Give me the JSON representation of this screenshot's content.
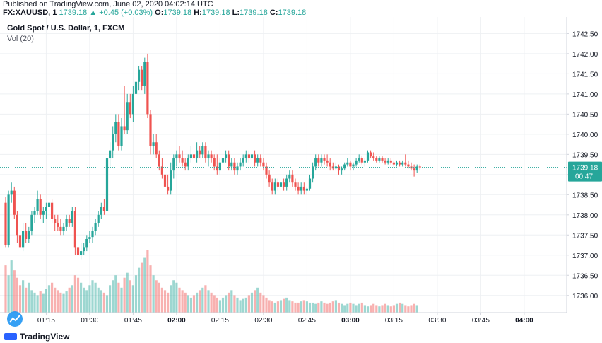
{
  "header": {
    "published": "Published on TradingView.com, June 02, 2020 04:02:14 UTC",
    "symbol": "FX:XAUUSD, 1",
    "price": "1739.18",
    "change": "+0.45 (+0.03%)",
    "open_label": "O:",
    "open": "1739.18",
    "high_label": "H:",
    "high": "1739.18",
    "low_label": "L:",
    "low": "1739.18",
    "close_label": "C:",
    "close": "1739.18"
  },
  "legend": {
    "title": "Gold Spot / U.S. Dollar, 1, FXCM",
    "volume": "Vol (20)"
  },
  "footer": {
    "brand": "TradingView"
  },
  "colors": {
    "up": "#26a69a",
    "down": "#ef5350",
    "price_label": "#26a69a",
    "grid": "#eef0f3"
  },
  "chart_data": {
    "type": "candlestick",
    "title": "Gold Spot / U.S. Dollar, 1, FXCM",
    "ylim": [
      1735.75,
      1742.7
    ],
    "y_ticks": [
      "1742.50",
      "1742.00",
      "1741.50",
      "1741.00",
      "1740.50",
      "1740.00",
      "1739.50",
      "1739.00",
      "1738.50",
      "1738.00",
      "1737.50",
      "1737.00",
      "1736.50",
      "1736.00"
    ],
    "x_ticks": [
      {
        "label": "01:15",
        "minute": 14
      },
      {
        "label": "01:30",
        "minute": 29
      },
      {
        "label": "01:45",
        "minute": 44
      },
      {
        "label": "02:00",
        "minute": 59,
        "bold": true
      },
      {
        "label": "02:15",
        "minute": 74
      },
      {
        "label": "02:30",
        "minute": 89
      },
      {
        "label": "02:45",
        "minute": 104
      },
      {
        "label": "03:00",
        "minute": 119,
        "bold": true
      },
      {
        "label": "03:15",
        "minute": 134
      },
      {
        "label": "03:30",
        "minute": 149
      },
      {
        "label": "03:45",
        "minute": 164
      },
      {
        "label": "04:00",
        "minute": 179,
        "bold": true
      }
    ],
    "last_price": "1739.18",
    "last_price_value": 1739.18,
    "countdown": "00:47",
    "volume_label": "Vol (20)",
    "candles": [
      [
        1738.3,
        1738.45,
        1737.2,
        1737.25
      ],
      [
        1737.25,
        1738.6,
        1737.2,
        1738.5
      ],
      [
        1738.5,
        1738.8,
        1738.3,
        1738.6
      ],
      [
        1738.6,
        1738.7,
        1737.9,
        1738.0
      ],
      [
        1738.0,
        1738.1,
        1737.3,
        1737.5
      ],
      [
        1737.5,
        1737.7,
        1737.1,
        1737.2
      ],
      [
        1737.2,
        1737.8,
        1737.1,
        1737.6
      ],
      [
        1737.6,
        1737.8,
        1737.3,
        1737.4
      ],
      [
        1737.4,
        1737.7,
        1737.3,
        1737.6
      ],
      [
        1737.6,
        1738.1,
        1737.5,
        1738.0
      ],
      [
        1738.0,
        1738.2,
        1737.8,
        1738.1
      ],
      [
        1738.1,
        1738.6,
        1738.0,
        1738.4
      ],
      [
        1738.4,
        1738.5,
        1737.9,
        1738.0
      ],
      [
        1738.0,
        1738.2,
        1737.8,
        1738.1
      ],
      [
        1738.1,
        1738.3,
        1737.9,
        1738.2
      ],
      [
        1738.2,
        1738.5,
        1738.0,
        1738.3
      ],
      [
        1738.3,
        1738.4,
        1737.8,
        1737.9
      ],
      [
        1737.9,
        1738.0,
        1737.6,
        1737.8
      ],
      [
        1737.8,
        1738.0,
        1737.6,
        1737.7
      ],
      [
        1737.7,
        1737.9,
        1737.5,
        1737.6
      ],
      [
        1737.6,
        1737.8,
        1737.5,
        1737.7
      ],
      [
        1737.7,
        1738.0,
        1737.6,
        1737.9
      ],
      [
        1737.9,
        1738.0,
        1737.7,
        1737.8
      ],
      [
        1737.8,
        1738.2,
        1737.7,
        1738.1
      ],
      [
        1738.1,
        1738.2,
        1737.0,
        1737.2
      ],
      [
        1737.2,
        1737.4,
        1736.9,
        1737.0
      ],
      [
        1737.0,
        1737.3,
        1736.9,
        1737.1
      ],
      [
        1737.1,
        1737.3,
        1737.0,
        1737.2
      ],
      [
        1737.2,
        1737.5,
        1737.1,
        1737.4
      ],
      [
        1737.4,
        1737.6,
        1737.3,
        1737.45
      ],
      [
        1737.45,
        1737.7,
        1737.3,
        1737.6
      ],
      [
        1737.6,
        1737.9,
        1737.5,
        1737.8
      ],
      [
        1737.8,
        1738.1,
        1737.7,
        1738.0
      ],
      [
        1738.0,
        1738.3,
        1737.9,
        1738.2
      ],
      [
        1738.2,
        1738.4,
        1738.0,
        1738.1
      ],
      [
        1738.1,
        1739.5,
        1738.0,
        1739.4
      ],
      [
        1739.4,
        1739.8,
        1739.2,
        1739.6
      ],
      [
        1739.6,
        1740.2,
        1739.4,
        1740.0
      ],
      [
        1740.0,
        1740.5,
        1739.8,
        1740.3
      ],
      [
        1740.3,
        1740.5,
        1739.6,
        1739.7
      ],
      [
        1739.7,
        1740.4,
        1739.6,
        1740.2
      ],
      [
        1740.2,
        1741.2,
        1740.0,
        1740.1
      ],
      [
        1740.1,
        1741.0,
        1740.0,
        1740.8
      ],
      [
        1740.8,
        1741.0,
        1740.4,
        1740.5
      ],
      [
        1740.5,
        1741.2,
        1740.3,
        1741.0
      ],
      [
        1741.0,
        1741.4,
        1740.8,
        1741.3
      ],
      [
        1741.3,
        1741.7,
        1741.1,
        1741.6
      ],
      [
        1741.6,
        1741.7,
        1741.1,
        1741.2
      ],
      [
        1741.2,
        1741.9,
        1741.0,
        1741.8
      ],
      [
        1741.8,
        1742.0,
        1740.4,
        1740.5
      ],
      [
        1740.5,
        1740.6,
        1739.5,
        1739.7
      ],
      [
        1739.7,
        1740.0,
        1739.5,
        1739.8
      ],
      [
        1739.8,
        1740.0,
        1739.4,
        1739.5
      ],
      [
        1739.5,
        1739.6,
        1739.1,
        1739.2
      ],
      [
        1739.2,
        1739.4,
        1738.9,
        1739.0
      ],
      [
        1739.0,
        1739.2,
        1738.6,
        1738.7
      ],
      [
        1738.7,
        1739.0,
        1738.5,
        1738.6
      ],
      [
        1738.6,
        1739.3,
        1738.5,
        1739.1
      ],
      [
        1739.1,
        1739.5,
        1738.9,
        1739.4
      ],
      [
        1739.4,
        1739.6,
        1739.2,
        1739.5
      ],
      [
        1739.5,
        1739.7,
        1739.3,
        1739.4
      ],
      [
        1739.4,
        1739.6,
        1739.2,
        1739.3
      ],
      [
        1739.3,
        1739.4,
        1739.1,
        1739.2
      ],
      [
        1739.2,
        1739.5,
        1739.1,
        1739.4
      ],
      [
        1739.4,
        1739.7,
        1739.3,
        1739.5
      ],
      [
        1739.5,
        1739.6,
        1739.3,
        1739.4
      ],
      [
        1739.4,
        1739.8,
        1739.3,
        1739.6
      ],
      [
        1739.6,
        1739.7,
        1739.4,
        1739.5
      ],
      [
        1739.5,
        1739.8,
        1739.4,
        1739.7
      ],
      [
        1739.7,
        1739.8,
        1739.3,
        1739.4
      ],
      [
        1739.4,
        1739.6,
        1739.2,
        1739.5
      ],
      [
        1739.5,
        1739.6,
        1739.3,
        1739.4
      ],
      [
        1739.4,
        1739.5,
        1739.1,
        1739.2
      ],
      [
        1739.2,
        1739.5,
        1739.0,
        1739.1
      ],
      [
        1739.1,
        1739.4,
        1739.0,
        1739.3
      ],
      [
        1739.3,
        1739.5,
        1739.2,
        1739.4
      ],
      [
        1739.4,
        1739.6,
        1739.3,
        1739.5
      ],
      [
        1739.5,
        1739.6,
        1739.1,
        1739.2
      ],
      [
        1739.2,
        1739.4,
        1739.1,
        1739.3
      ],
      [
        1739.3,
        1739.4,
        1739.0,
        1739.1
      ],
      [
        1739.1,
        1739.3,
        1739.0,
        1739.2
      ],
      [
        1739.2,
        1739.4,
        1739.1,
        1739.3
      ],
      [
        1739.3,
        1739.5,
        1739.2,
        1739.4
      ],
      [
        1739.4,
        1739.6,
        1739.3,
        1739.5
      ],
      [
        1739.5,
        1739.6,
        1739.3,
        1739.4
      ],
      [
        1739.4,
        1739.6,
        1739.3,
        1739.5
      ],
      [
        1739.5,
        1739.6,
        1739.2,
        1739.3
      ],
      [
        1739.3,
        1739.5,
        1739.2,
        1739.4
      ],
      [
        1739.4,
        1739.5,
        1739.2,
        1739.3
      ],
      [
        1739.3,
        1739.4,
        1739.1,
        1739.2
      ],
      [
        1739.2,
        1739.3,
        1738.9,
        1739.0
      ],
      [
        1739.0,
        1739.1,
        1738.7,
        1738.8
      ],
      [
        1738.8,
        1738.9,
        1738.5,
        1738.6
      ],
      [
        1738.6,
        1738.9,
        1738.5,
        1738.8
      ],
      [
        1738.8,
        1738.9,
        1738.6,
        1738.7
      ],
      [
        1738.7,
        1738.9,
        1738.6,
        1738.8
      ],
      [
        1738.8,
        1738.9,
        1738.6,
        1738.7
      ],
      [
        1738.7,
        1739.0,
        1738.6,
        1738.9
      ],
      [
        1738.9,
        1739.1,
        1738.8,
        1739.0
      ],
      [
        1739.0,
        1739.1,
        1738.7,
        1738.8
      ],
      [
        1738.8,
        1738.9,
        1738.6,
        1738.7
      ],
      [
        1738.7,
        1738.8,
        1738.5,
        1738.6
      ],
      [
        1738.6,
        1738.8,
        1738.5,
        1738.7
      ],
      [
        1738.7,
        1738.8,
        1738.5,
        1738.6
      ],
      [
        1738.6,
        1738.7,
        1738.5,
        1738.65
      ],
      [
        1738.65,
        1739.0,
        1738.6,
        1738.9
      ],
      [
        1738.9,
        1739.3,
        1738.8,
        1739.2
      ],
      [
        1739.2,
        1739.5,
        1739.1,
        1739.4
      ],
      [
        1739.4,
        1739.5,
        1739.2,
        1739.3
      ],
      [
        1739.3,
        1739.5,
        1739.2,
        1739.4
      ],
      [
        1739.4,
        1739.5,
        1739.25,
        1739.35
      ],
      [
        1739.35,
        1739.5,
        1739.2,
        1739.3
      ],
      [
        1739.3,
        1739.4,
        1739.1,
        1739.2
      ],
      [
        1739.2,
        1739.3,
        1739.1,
        1739.15
      ],
      [
        1739.15,
        1739.3,
        1739.1,
        1739.2
      ],
      [
        1739.2,
        1739.25,
        1739.0,
        1739.1
      ],
      [
        1739.1,
        1739.2,
        1739.0,
        1739.15
      ],
      [
        1739.15,
        1739.3,
        1739.1,
        1739.25
      ],
      [
        1739.25,
        1739.4,
        1739.2,
        1739.3
      ],
      [
        1739.3,
        1739.35,
        1739.1,
        1739.2
      ],
      [
        1739.2,
        1739.3,
        1739.1,
        1739.25
      ],
      [
        1739.25,
        1739.4,
        1739.2,
        1739.35
      ],
      [
        1739.35,
        1739.5,
        1739.3,
        1739.4
      ],
      [
        1739.4,
        1739.45,
        1739.25,
        1739.3
      ],
      [
        1739.3,
        1739.4,
        1739.2,
        1739.35
      ],
      [
        1739.35,
        1739.6,
        1739.3,
        1739.55
      ],
      [
        1739.55,
        1739.6,
        1739.4,
        1739.45
      ],
      [
        1739.45,
        1739.55,
        1739.35,
        1739.4
      ],
      [
        1739.4,
        1739.45,
        1739.3,
        1739.35
      ],
      [
        1739.35,
        1739.45,
        1739.3,
        1739.4
      ],
      [
        1739.4,
        1739.45,
        1739.3,
        1739.35
      ],
      [
        1739.35,
        1739.4,
        1739.25,
        1739.3
      ],
      [
        1739.3,
        1739.4,
        1739.25,
        1739.35
      ],
      [
        1739.35,
        1739.4,
        1739.25,
        1739.3
      ],
      [
        1739.3,
        1739.35,
        1739.2,
        1739.25
      ],
      [
        1739.25,
        1739.35,
        1739.2,
        1739.3
      ],
      [
        1739.3,
        1739.35,
        1739.2,
        1739.25
      ],
      [
        1739.25,
        1739.35,
        1739.2,
        1739.3
      ],
      [
        1739.3,
        1739.5,
        1739.2,
        1739.25
      ],
      [
        1739.25,
        1739.35,
        1739.15,
        1739.2
      ],
      [
        1739.2,
        1739.3,
        1739.1,
        1739.15
      ],
      [
        1739.15,
        1739.25,
        1738.95,
        1739.1
      ],
      [
        1739.1,
        1739.25,
        1739.05,
        1739.2
      ],
      [
        1739.2,
        1739.25,
        1739.1,
        1739.18
      ]
    ],
    "volumes": [
      38,
      30,
      42,
      34,
      28,
      22,
      26,
      20,
      24,
      18,
      16,
      14,
      17,
      15,
      19,
      22,
      24,
      20,
      18,
      16,
      15,
      17,
      20,
      22,
      30,
      28,
      24,
      20,
      18,
      22,
      26,
      24,
      20,
      18,
      16,
      14,
      22,
      26,
      30,
      24,
      20,
      28,
      32,
      26,
      22,
      30,
      36,
      40,
      44,
      50,
      38,
      30,
      26,
      24,
      20,
      18,
      16,
      22,
      26,
      24,
      20,
      18,
      16,
      14,
      12,
      14,
      16,
      18,
      20,
      22,
      18,
      16,
      14,
      12,
      10,
      12,
      14,
      16,
      18,
      14,
      12,
      10,
      11,
      12,
      14,
      16,
      18,
      20,
      16,
      14,
      12,
      10,
      9,
      8,
      9,
      10,
      11,
      12,
      10,
      9,
      8,
      8,
      9,
      10,
      9,
      8,
      8,
      7,
      8,
      9,
      8,
      7,
      8,
      9,
      10,
      8,
      7,
      6,
      7,
      8,
      7,
      6,
      7,
      8,
      6,
      5,
      6,
      7,
      6,
      5,
      6,
      7,
      6,
      5,
      6,
      7,
      8,
      7,
      6,
      5,
      6,
      7,
      6
    ]
  }
}
